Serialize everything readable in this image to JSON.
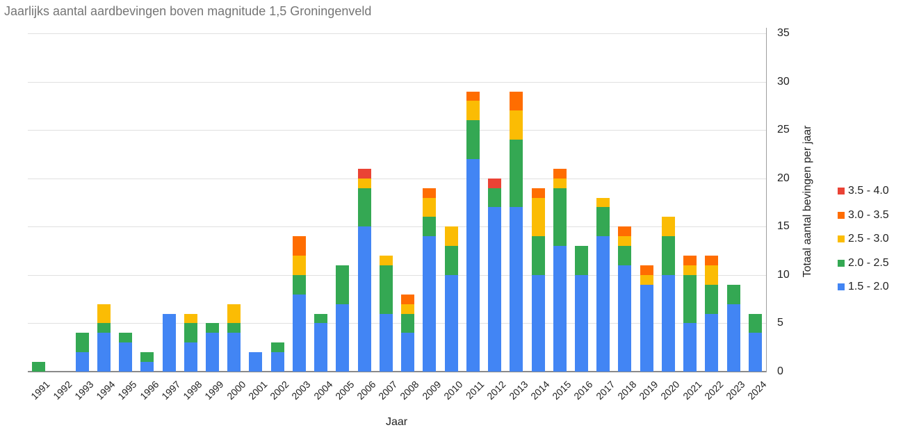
{
  "chart_data": {
    "type": "bar",
    "stacked": true,
    "title": "Jaarlijks aantal aardbevingen boven magnitude 1,5 Groningenveld",
    "xlabel": "Jaar",
    "ylabel": "Totaal aantal bevingen per jaar",
    "ylim": [
      0,
      35
    ],
    "yticks": [
      0,
      5,
      10,
      15,
      20,
      25,
      30,
      35
    ],
    "grid": true,
    "y_axis_position": "right",
    "legend_position": "right",
    "categories": [
      "1991",
      "1992",
      "1993",
      "1994",
      "1995",
      "1996",
      "1997",
      "1998",
      "1999",
      "2000",
      "2001",
      "2002",
      "2003",
      "2004",
      "2005",
      "2006",
      "2007",
      "2008",
      "2009",
      "2010",
      "2011",
      "2012",
      "2013",
      "2014",
      "2015",
      "2016",
      "2017",
      "2018",
      "2019",
      "2020",
      "2021",
      "2022",
      "2023",
      "2024"
    ],
    "series": [
      {
        "name": "1.5 - 2.0",
        "color": "#4285f4",
        "values": [
          0,
          0,
          2,
          4,
          3,
          1,
          6,
          3,
          4,
          4,
          2,
          2,
          8,
          5,
          7,
          15,
          6,
          4,
          14,
          10,
          22,
          17,
          17,
          10,
          13,
          10,
          14,
          11,
          9,
          10,
          5,
          6,
          7,
          4
        ]
      },
      {
        "name": "2.0 - 2.5",
        "color": "#34a853",
        "values": [
          1,
          0,
          2,
          1,
          1,
          1,
          0,
          2,
          1,
          1,
          0,
          1,
          2,
          1,
          4,
          4,
          5,
          2,
          2,
          3,
          4,
          2,
          7,
          4,
          6,
          3,
          3,
          2,
          0,
          4,
          5,
          3,
          2,
          2
        ]
      },
      {
        "name": "2.5 - 3.0",
        "color": "#fbbc04",
        "values": [
          0,
          0,
          0,
          2,
          0,
          0,
          0,
          1,
          0,
          2,
          0,
          0,
          2,
          0,
          0,
          1,
          1,
          1,
          2,
          2,
          2,
          0,
          3,
          4,
          1,
          0,
          1,
          1,
          1,
          2,
          1,
          2,
          0,
          0
        ]
      },
      {
        "name": "3.0 - 3.5",
        "color": "#ff6d01",
        "values": [
          0,
          0,
          0,
          0,
          0,
          0,
          0,
          0,
          0,
          0,
          0,
          0,
          2,
          0,
          0,
          0,
          0,
          1,
          1,
          0,
          1,
          0,
          2,
          1,
          1,
          0,
          0,
          1,
          1,
          0,
          1,
          1,
          0,
          0
        ]
      },
      {
        "name": "3.5 - 4.0",
        "color": "#ea4335",
        "values": [
          0,
          0,
          0,
          0,
          0,
          0,
          0,
          0,
          0,
          0,
          0,
          0,
          0,
          0,
          0,
          1,
          0,
          0,
          0,
          0,
          0,
          1,
          0,
          0,
          0,
          0,
          0,
          0,
          0,
          0,
          0,
          0,
          0,
          0
        ]
      }
    ],
    "legend": [
      "3.5 - 4.0",
      "3.0 - 3.5",
      "2.5 - 3.0",
      "2.0 - 2.5",
      "1.5 - 2.0"
    ]
  }
}
